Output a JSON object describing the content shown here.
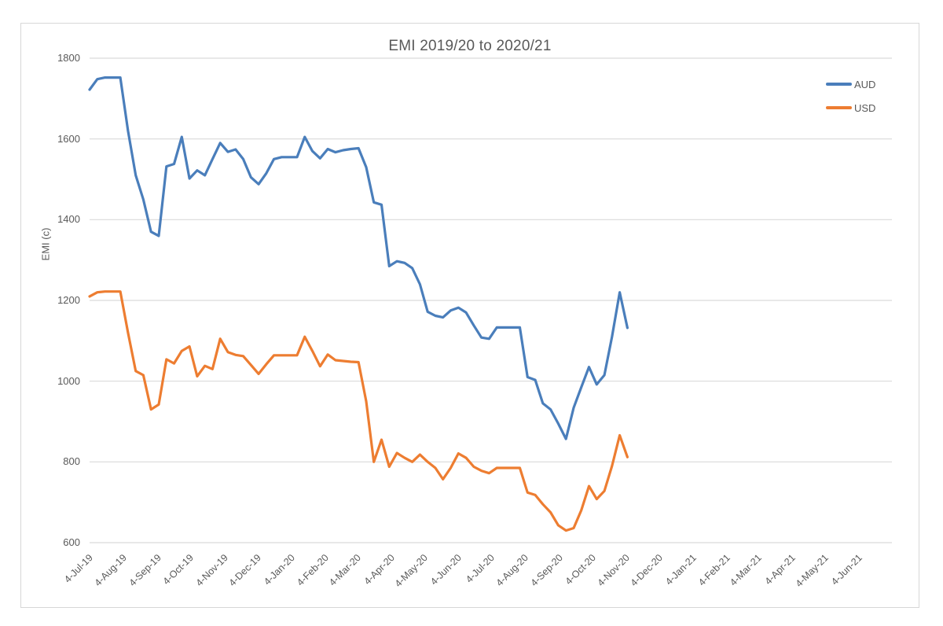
{
  "chart": {
    "title": "EMI 2019/20 to 2020/21",
    "y_axis_title": "EMI (c)",
    "legend": {
      "items": [
        {
          "label": "AUD",
          "color": "#4A7EBB"
        },
        {
          "label": "USD",
          "color": "#ED7D31"
        }
      ]
    },
    "colors": {
      "gridline": "#d9d9d9",
      "frame_border": "#d7d7d7",
      "text": "#595959"
    }
  },
  "chart_data": {
    "type": "line",
    "title": "EMI 2019/20 to 2020/21",
    "xlabel": "",
    "ylabel": "EMI (c)",
    "ylim": [
      600,
      1800
    ],
    "y_ticks": [
      600,
      800,
      1000,
      1200,
      1400,
      1600,
      1800
    ],
    "grid": "horizontal",
    "legend_position": "right-inside-top",
    "x_interval": "weekly",
    "x_start": "4-Jul-19",
    "x_end_of_data": "4-Nov-20",
    "x_tick_labels": [
      "4-Jul-19",
      "4-Aug-19",
      "4-Sep-19",
      "4-Oct-19",
      "4-Nov-19",
      "4-Dec-19",
      "4-Jan-20",
      "4-Feb-20",
      "4-Mar-20",
      "4-Apr-20",
      "4-May-20",
      "4-Jun-20",
      "4-Jul-20",
      "4-Aug-20",
      "4-Sep-20",
      "4-Oct-20",
      "4-Nov-20",
      "4-Dec-20",
      "4-Jan-21",
      "4-Feb-21",
      "4-Mar-21",
      "4-Apr-21",
      "4-May-21",
      "4-Jun-21"
    ],
    "series": [
      {
        "name": "AUD",
        "color": "#4A7EBB",
        "values": [
          1722,
          1748,
          1752,
          1752,
          1752,
          1620,
          1510,
          1450,
          1370,
          1360,
          1532,
          1538,
          1605,
          1502,
          1522,
          1510,
          1550,
          1590,
          1568,
          1574,
          1550,
          1505,
          1488,
          1515,
          1550,
          1555,
          1555,
          1555,
          1605,
          1570,
          1552,
          1575,
          1567,
          1572,
          1575,
          1577,
          1530,
          1443,
          1437,
          1285,
          1297,
          1293,
          1280,
          1240,
          1172,
          1162,
          1158,
          1175,
          1182,
          1170,
          1138,
          1108,
          1105,
          1133,
          1133,
          1133,
          1133,
          1010,
          1003,
          945,
          930,
          895,
          857,
          934,
          985,
          1035,
          992,
          1015,
          1110,
          1220,
          1132
        ]
      },
      {
        "name": "USD",
        "color": "#ED7D31",
        "values": [
          1210,
          1220,
          1222,
          1222,
          1222,
          1120,
          1025,
          1015,
          930,
          942,
          1054,
          1044,
          1075,
          1086,
          1012,
          1038,
          1030,
          1105,
          1072,
          1065,
          1062,
          1040,
          1018,
          1042,
          1064,
          1064,
          1064,
          1064,
          1110,
          1075,
          1037,
          1066,
          1052,
          1050,
          1048,
          1047,
          950,
          800,
          855,
          788,
          822,
          810,
          800,
          818,
          800,
          785,
          757,
          785,
          821,
          810,
          788,
          778,
          772,
          785,
          785,
          785,
          785,
          724,
          718,
          695,
          675,
          643,
          630,
          636,
          680,
          740,
          708,
          728,
          790,
          866,
          812
        ]
      }
    ]
  }
}
